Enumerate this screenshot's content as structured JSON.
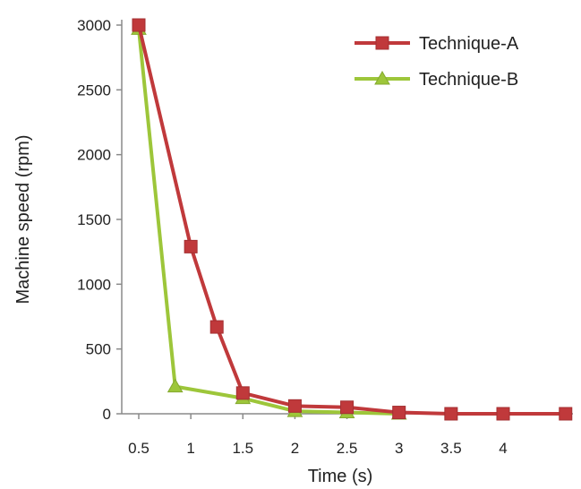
{
  "chart_data": {
    "type": "line",
    "title": "",
    "xlabel": "Time (s)",
    "ylabel": "Machine speed (rpm)",
    "xlim": [
      0.5,
      5.0
    ],
    "ylim": [
      0,
      3000
    ],
    "xticks": [
      0.5,
      1,
      1.5,
      2,
      2.5,
      3,
      3.5,
      4
    ],
    "xtick_labels": [
      "0.5",
      "1",
      "1.5",
      "2",
      "2.5",
      "3",
      "3.5",
      "4"
    ],
    "yticks": [
      0,
      500,
      1000,
      1500,
      2000,
      2500,
      3000
    ],
    "ytick_labels": [
      "0",
      "500",
      "1000",
      "1500",
      "2000",
      "2500",
      "3000"
    ],
    "grid": false,
    "legend_position": "top-right",
    "series": [
      {
        "name": "Technique-A",
        "color": "#c0393b",
        "marker": "square",
        "x": [
          0.5,
          1.0,
          1.25,
          1.5,
          2.0,
          2.5,
          3.0,
          3.5,
          4.0,
          4.6
        ],
        "y": [
          3000,
          1290,
          670,
          160,
          60,
          50,
          10,
          0,
          0,
          0
        ]
      },
      {
        "name": "Technique-B",
        "color": "#9dc63a",
        "marker": "triangle",
        "x": [
          0.5,
          0.85,
          1.5,
          2.0,
          2.5,
          3.0
        ],
        "y": [
          2970,
          210,
          120,
          20,
          10,
          0
        ]
      }
    ]
  }
}
